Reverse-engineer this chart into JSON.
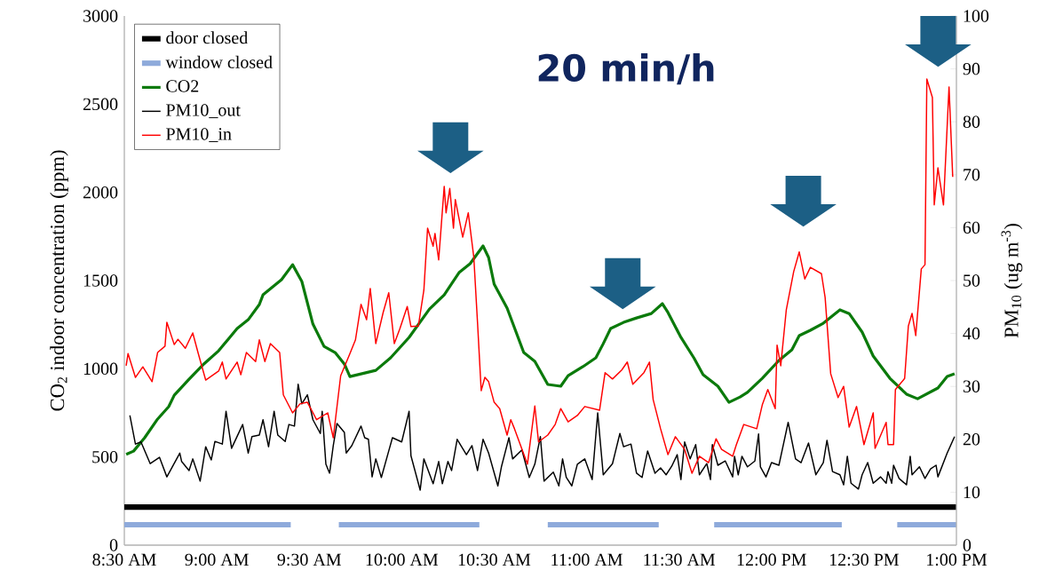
{
  "chart_data": {
    "type": "line",
    "ylabel": "CO$_{2}$ indoor concentration (ppm)",
    "y2label": "PM$_{10}$ (ug m$^{-3}$)",
    "annotations": [
      "20 min/h"
    ],
    "legend": "top left",
    "xlim": [
      8.5,
      13
    ],
    "xticks": [
      {
        "value": 8.5,
        "label": "8:30 AM"
      },
      {
        "value": 9,
        "label": "9:00 AM"
      },
      {
        "value": 9.5,
        "label": "9:30 AM"
      },
      {
        "value": 10,
        "label": "10:00 AM"
      },
      {
        "value": 10.5,
        "label": "10:30 AM"
      },
      {
        "value": 11,
        "label": "11:00 AM"
      },
      {
        "value": 11.5,
        "label": "11:30 AM"
      },
      {
        "value": 12,
        "label": "12:00 PM"
      },
      {
        "value": 12.5,
        "label": "12:30 PM"
      },
      {
        "value": 13,
        "label": "1:00 PM"
      }
    ],
    "ylim": [
      0,
      3000
    ],
    "yticks": [
      0,
      500,
      1000,
      1500,
      2000,
      2500,
      3000
    ],
    "y2lim": [
      0,
      100
    ],
    "y2ticks": [
      0,
      10,
      20,
      30,
      40,
      50,
      60,
      70,
      80,
      90,
      100
    ],
    "series": [
      {
        "name": "door closed",
        "color": "#000000",
        "x": [
          8.5,
          13
        ],
        "values": [
          216,
          216
        ]
      },
      {
        "name": "window closed",
        "color": "#8eaadb",
        "x": [
          8.5,
          9.4
        ],
        "values": [
          116,
          116
        ]
      },
      {
        "color": "#8eaadb",
        "x": [
          9.66,
          10.42
        ],
        "values": [
          116,
          116
        ]
      },
      {
        "color": "#8eaadb",
        "x": [
          10.79,
          11.39
        ],
        "values": [
          116,
          116
        ]
      },
      {
        "color": "#8eaadb",
        "x": [
          11.69,
          12.38
        ],
        "values": [
          116,
          116
        ]
      },
      {
        "color": "#8eaadb",
        "x": [
          12.68,
          13
        ],
        "values": [
          116,
          116
        ]
      },
      {
        "name": "CO2",
        "color": "#0b7a0b",
        "x": [
          8.51,
          8.55,
          8.61,
          8.68,
          8.74,
          8.77,
          8.85,
          8.93,
          9.01,
          9.11,
          9.17,
          9.23,
          9.25,
          9.35,
          9.41,
          9.46,
          9.52,
          9.58,
          9.64,
          9.69,
          9.72,
          9.8,
          9.86,
          9.94,
          10.04,
          10.15,
          10.23,
          10.31,
          10.37,
          10.44,
          10.47,
          10.5,
          10.57,
          10.66,
          10.72,
          10.79,
          10.86,
          10.9,
          10.98,
          11.05,
          11.09,
          11.13,
          11.2,
          11.27,
          11.35,
          11.41,
          11.44,
          11.51,
          11.58,
          11.63,
          11.71,
          11.77,
          11.83,
          11.87,
          11.95,
          12.04,
          12.11,
          12.15,
          12.21,
          12.28,
          12.37,
          12.42,
          12.49,
          12.55,
          12.64,
          12.73,
          12.79,
          12.9,
          12.95,
          12.99
        ],
        "values": [
          515,
          533,
          609,
          715,
          785,
          850,
          941,
          1027,
          1102,
          1228,
          1278,
          1364,
          1419,
          1505,
          1590,
          1495,
          1253,
          1127,
          1092,
          1027,
          956,
          976,
          991,
          1062,
          1178,
          1338,
          1419,
          1545,
          1596,
          1696,
          1631,
          1480,
          1344,
          1092,
          1042,
          911,
          901,
          961,
          1012,
          1062,
          1142,
          1228,
          1263,
          1288,
          1313,
          1369,
          1319,
          1178,
          1062,
          966,
          901,
          810,
          840,
          866,
          946,
          1047,
          1107,
          1188,
          1218,
          1258,
          1334,
          1313,
          1208,
          1072,
          946,
          856,
          830,
          891,
          956,
          971
        ]
      },
      {
        "name": "PM10_out",
        "color": "#000000",
        "axis": "y2",
        "x": [
          8.53,
          8.56,
          8.59,
          8.64,
          8.69,
          8.73,
          8.8,
          8.81,
          8.85,
          8.87,
          8.91,
          8.94,
          8.97,
          8.99,
          9.03,
          9.05,
          9.08,
          9.14,
          9.17,
          9.19,
          9.23,
          9.25,
          9.28,
          9.31,
          9.33,
          9.37,
          9.39,
          9.42,
          9.44,
          9.46,
          9.49,
          9.52,
          9.56,
          9.57,
          9.59,
          9.61,
          9.63,
          9.65,
          9.69,
          9.7,
          9.73,
          9.78,
          9.8,
          9.82,
          9.84,
          9.86,
          9.89,
          9.93,
          9.95,
          10.0,
          10.04,
          10.05,
          10.1,
          10.12,
          10.17,
          10.2,
          10.22,
          10.25,
          10.27,
          10.3,
          10.35,
          10.38,
          10.41,
          10.44,
          10.47,
          10.52,
          10.54,
          10.58,
          10.6,
          10.65,
          10.69,
          10.72,
          10.75,
          10.77,
          10.82,
          10.85,
          10.87,
          10.89,
          10.92,
          10.95,
          10.99,
          11.03,
          11.06,
          11.09,
          11.14,
          11.18,
          11.2,
          11.24,
          11.27,
          11.3,
          11.33,
          11.37,
          11.4,
          11.43,
          11.46,
          11.49,
          11.51,
          11.53,
          11.56,
          11.59,
          11.61,
          11.65,
          11.67,
          11.68,
          11.71,
          11.75,
          11.79,
          11.8,
          11.82,
          11.84,
          11.87,
          11.91,
          11.93,
          11.94,
          11.97,
          12.0,
          12.04,
          12.09,
          12.13,
          12.16,
          12.2,
          12.24,
          12.28,
          12.3,
          12.33,
          12.37,
          12.39,
          12.41,
          12.43,
          12.47,
          12.49,
          12.52,
          12.55,
          12.59,
          12.62,
          12.63,
          12.65,
          12.66,
          12.69,
          12.73,
          12.75,
          12.76,
          12.8,
          12.83,
          12.86,
          12.89,
          12.9,
          12.95,
          12.99
        ],
        "values": [
          24.5,
          19.1,
          19.5,
          15.4,
          16.6,
          12.9,
          17.4,
          15.8,
          14.1,
          16.3,
          12.1,
          18.6,
          16.1,
          19.6,
          19.1,
          25.3,
          18.3,
          22.8,
          17.4,
          20.5,
          20.8,
          23.7,
          18.6,
          25.3,
          20.8,
          19.6,
          22.8,
          22.5,
          30.4,
          26.7,
          28.4,
          23.7,
          21.1,
          25.3,
          15.3,
          13.6,
          18.8,
          23.0,
          21.3,
          17.4,
          18.8,
          22.5,
          20.3,
          20.0,
          12.9,
          16.3,
          12.8,
          17.8,
          20.3,
          19.5,
          25.3,
          16.9,
          10.4,
          16.3,
          11.6,
          15.8,
          11.6,
          15.8,
          14.1,
          20.0,
          17.1,
          18.8,
          14.1,
          20.0,
          17.4,
          11.2,
          14.9,
          20.3,
          16.3,
          18.0,
          12.8,
          15.3,
          20.5,
          12.1,
          13.8,
          11.2,
          16.3,
          12.8,
          11.2,
          15.3,
          16.3,
          12.4,
          25.0,
          13.3,
          15.4,
          21.1,
          18.6,
          19.1,
          13.6,
          12.8,
          17.8,
          13.6,
          14.6,
          13.3,
          14.9,
          17.1,
          12.4,
          19.5,
          16.3,
          19.0,
          13.3,
          15.4,
          12.4,
          19.0,
          15.1,
          15.9,
          12.9,
          16.8,
          13.3,
          16.8,
          14.8,
          15.9,
          21.0,
          14.8,
          12.9,
          15.6,
          15.1,
          23.2,
          16.3,
          15.6,
          19.3,
          13.3,
          15.6,
          19.8,
          13.9,
          13.3,
          11.4,
          16.8,
          11.7,
          10.6,
          13.3,
          15.6,
          11.7,
          12.9,
          11.7,
          13.9,
          11.7,
          15.1,
          12.6,
          11.4,
          16.8,
          13.3,
          14.8,
          12.6,
          14.4,
          15.1,
          12.9,
          17.4,
          20.5
        ]
      },
      {
        "name": "PM10_in",
        "color": "#ff0000",
        "axis": "y2",
        "x": [
          8.51,
          8.52,
          8.56,
          8.6,
          8.65,
          8.68,
          8.72,
          8.73,
          8.77,
          8.79,
          8.83,
          8.87,
          8.9,
          8.94,
          9.01,
          9.03,
          9.05,
          9.11,
          9.13,
          9.16,
          9.21,
          9.23,
          9.26,
          9.29,
          9.34,
          9.36,
          9.41,
          9.45,
          9.49,
          9.54,
          9.6,
          9.63,
          9.67,
          9.72,
          9.75,
          9.78,
          9.81,
          9.83,
          9.86,
          9.9,
          9.93,
          9.96,
          9.99,
          10.03,
          10.05,
          10.09,
          10.12,
          10.14,
          10.17,
          10.18,
          10.2,
          10.23,
          10.24,
          10.26,
          10.28,
          10.29,
          10.33,
          10.36,
          10.39,
          10.41,
          10.43,
          10.45,
          10.47,
          10.5,
          10.53,
          10.57,
          10.59,
          10.61,
          10.68,
          10.72,
          10.74,
          10.79,
          10.83,
          10.86,
          10.9,
          10.95,
          10.99,
          11.07,
          11.1,
          11.14,
          11.19,
          11.22,
          11.25,
          11.31,
          11.34,
          11.36,
          11.4,
          11.44,
          11.48,
          11.53,
          11.57,
          11.61,
          11.66,
          11.7,
          11.73,
          11.79,
          11.81,
          11.85,
          11.92,
          11.95,
          11.98,
          12.02,
          12.03,
          12.05,
          12.08,
          12.12,
          12.15,
          12.18,
          12.21,
          12.27,
          12.29,
          12.32,
          12.36,
          12.39,
          12.42,
          12.46,
          12.5,
          12.55,
          12.56,
          12.62,
          12.63,
          12.66,
          12.67,
          12.72,
          12.74,
          12.76,
          12.78,
          12.81,
          12.83,
          12.84,
          12.87,
          12.88,
          12.9,
          12.93,
          12.96,
          12.98
        ],
        "values": [
          33.9,
          36.2,
          31.7,
          33.7,
          30.9,
          36.4,
          37.6,
          42.1,
          37.9,
          38.9,
          37.2,
          40.1,
          36.2,
          31.2,
          32.9,
          34.6,
          31.4,
          34.6,
          32.2,
          36.4,
          34.7,
          38.8,
          34.7,
          38.1,
          36.4,
          28.4,
          25.0,
          26.7,
          27.0,
          23.7,
          25.0,
          20.3,
          32.0,
          36.2,
          38.8,
          45.5,
          42.6,
          48.5,
          38.1,
          44.0,
          47.7,
          38.1,
          40.9,
          45.1,
          41.3,
          41.4,
          48.2,
          59.9,
          56.5,
          58.9,
          53.9,
          67.8,
          62.8,
          67.4,
          59.9,
          65.3,
          58.2,
          62.8,
          54.4,
          42.1,
          29.2,
          31.7,
          30.9,
          27.0,
          25.8,
          20.8,
          23.7,
          22.0,
          15.3,
          26.3,
          19.5,
          20.8,
          22.8,
          25.8,
          23.3,
          24.5,
          26.2,
          25.5,
          32.6,
          31.4,
          33.1,
          34.6,
          30.4,
          32.6,
          34.6,
          27.5,
          22.0,
          17.1,
          20.5,
          18.1,
          13.6,
          16.8,
          15.6,
          20.1,
          18.1,
          16.8,
          19.0,
          22.8,
          22.0,
          26.5,
          29.4,
          25.8,
          37.8,
          33.9,
          44.5,
          51.7,
          55.4,
          50.3,
          52.5,
          51.3,
          46.8,
          32.4,
          27.9,
          30.0,
          22.3,
          26.2,
          19.0,
          25.0,
          18.3,
          23.2,
          19.0,
          19.0,
          29.4,
          31.5,
          41.4,
          43.8,
          39.6,
          52.2,
          53.0,
          88.1,
          84.6,
          64.3,
          71.3,
          64.3,
          86.6,
          69.6
        ]
      }
    ]
  }
}
